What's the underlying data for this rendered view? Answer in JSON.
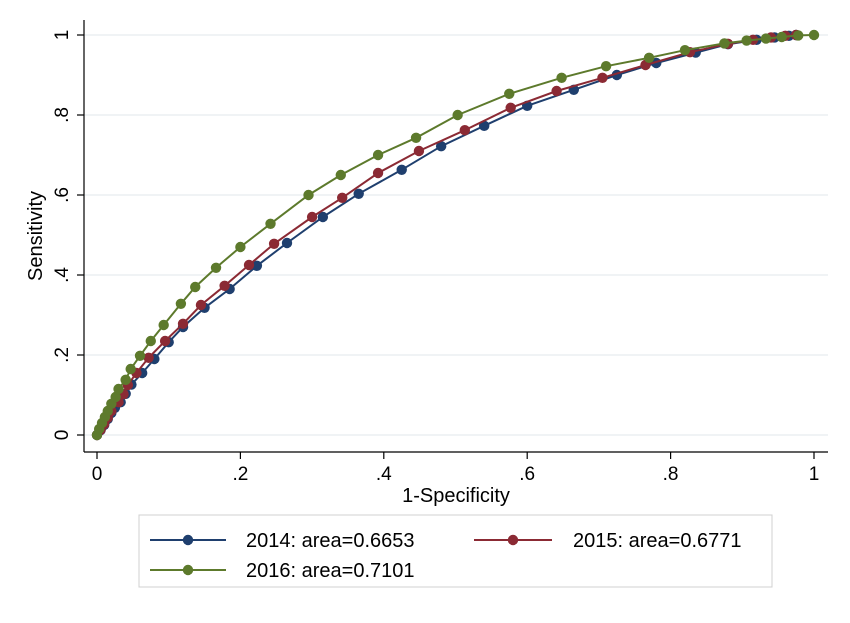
{
  "chart_data": {
    "type": "line",
    "title": "",
    "xlabel": "1-Specificity",
    "ylabel": "Sensitivity",
    "xlim": [
      0,
      1
    ],
    "ylim": [
      0,
      1
    ],
    "x_ticks": [
      0,
      0.2,
      0.4,
      0.6,
      0.8,
      1
    ],
    "x_tick_labels": [
      "0",
      ".2",
      ".4",
      ".6",
      ".8",
      "1"
    ],
    "y_ticks": [
      0,
      0.2,
      0.4,
      0.6,
      0.8,
      1
    ],
    "y_tick_labels": [
      "0",
      ".2",
      ".4",
      ".6",
      ".8",
      "1"
    ],
    "grid": "horizontal",
    "legend_position": "bottom",
    "series": [
      {
        "name": "2014: area=0.6653",
        "color": "#1f3f6e",
        "marker": "circle",
        "points": [
          [
            0,
            0
          ],
          [
            0.005,
            0.012
          ],
          [
            0.01,
            0.025
          ],
          [
            0.015,
            0.04
          ],
          [
            0.02,
            0.055
          ],
          [
            0.025,
            0.068
          ],
          [
            0.033,
            0.082
          ],
          [
            0.04,
            0.103
          ],
          [
            0.048,
            0.126
          ],
          [
            0.063,
            0.155
          ],
          [
            0.08,
            0.19
          ],
          [
            0.1,
            0.232
          ],
          [
            0.12,
            0.27
          ],
          [
            0.15,
            0.318
          ],
          [
            0.185,
            0.365
          ],
          [
            0.223,
            0.423
          ],
          [
            0.265,
            0.48
          ],
          [
            0.315,
            0.545
          ],
          [
            0.365,
            0.603
          ],
          [
            0.425,
            0.663
          ],
          [
            0.48,
            0.722
          ],
          [
            0.54,
            0.773
          ],
          [
            0.6,
            0.823
          ],
          [
            0.665,
            0.863
          ],
          [
            0.725,
            0.9
          ],
          [
            0.78,
            0.93
          ],
          [
            0.835,
            0.956
          ],
          [
            0.88,
            0.977
          ],
          [
            0.92,
            0.988
          ],
          [
            0.945,
            0.994
          ],
          [
            0.965,
            0.998
          ],
          [
            0.975,
            1
          ]
        ]
      },
      {
        "name": "2015: area=0.6771",
        "color": "#8b2a34",
        "marker": "circle",
        "points": [
          [
            0,
            0
          ],
          [
            0.005,
            0.013
          ],
          [
            0.01,
            0.027
          ],
          [
            0.015,
            0.043
          ],
          [
            0.02,
            0.06
          ],
          [
            0.03,
            0.082
          ],
          [
            0.037,
            0.102
          ],
          [
            0.043,
            0.125
          ],
          [
            0.055,
            0.155
          ],
          [
            0.072,
            0.193
          ],
          [
            0.095,
            0.235
          ],
          [
            0.12,
            0.278
          ],
          [
            0.145,
            0.325
          ],
          [
            0.178,
            0.373
          ],
          [
            0.212,
            0.425
          ],
          [
            0.247,
            0.478
          ],
          [
            0.3,
            0.545
          ],
          [
            0.342,
            0.593
          ],
          [
            0.392,
            0.655
          ],
          [
            0.449,
            0.71
          ],
          [
            0.513,
            0.762
          ],
          [
            0.577,
            0.818
          ],
          [
            0.641,
            0.86
          ],
          [
            0.705,
            0.893
          ],
          [
            0.765,
            0.925
          ],
          [
            0.827,
            0.957
          ],
          [
            0.88,
            0.978
          ],
          [
            0.915,
            0.988
          ],
          [
            0.94,
            0.994
          ],
          [
            0.96,
            0.998
          ],
          [
            0.975,
            1
          ]
        ]
      },
      {
        "name": "2016:  area=0.7101",
        "color": "#5d7a2c",
        "marker": "circle",
        "points": [
          [
            0,
            0
          ],
          [
            0.003,
            0.015
          ],
          [
            0.007,
            0.03
          ],
          [
            0.011,
            0.045
          ],
          [
            0.015,
            0.06
          ],
          [
            0.02,
            0.078
          ],
          [
            0.026,
            0.095
          ],
          [
            0.03,
            0.115
          ],
          [
            0.04,
            0.138
          ],
          [
            0.047,
            0.165
          ],
          [
            0.06,
            0.198
          ],
          [
            0.075,
            0.235
          ],
          [
            0.093,
            0.275
          ],
          [
            0.117,
            0.328
          ],
          [
            0.137,
            0.37
          ],
          [
            0.166,
            0.418
          ],
          [
            0.2,
            0.47
          ],
          [
            0.242,
            0.528
          ],
          [
            0.295,
            0.6
          ],
          [
            0.34,
            0.65
          ],
          [
            0.392,
            0.7
          ],
          [
            0.445,
            0.743
          ],
          [
            0.503,
            0.8
          ],
          [
            0.575,
            0.853
          ],
          [
            0.648,
            0.893
          ],
          [
            0.71,
            0.922
          ],
          [
            0.77,
            0.943
          ],
          [
            0.82,
            0.962
          ],
          [
            0.875,
            0.979
          ],
          [
            0.906,
            0.986
          ],
          [
            0.933,
            0.991
          ],
          [
            0.955,
            0.995
          ],
          [
            0.978,
            0.999
          ],
          [
            1,
            1
          ]
        ]
      }
    ]
  }
}
